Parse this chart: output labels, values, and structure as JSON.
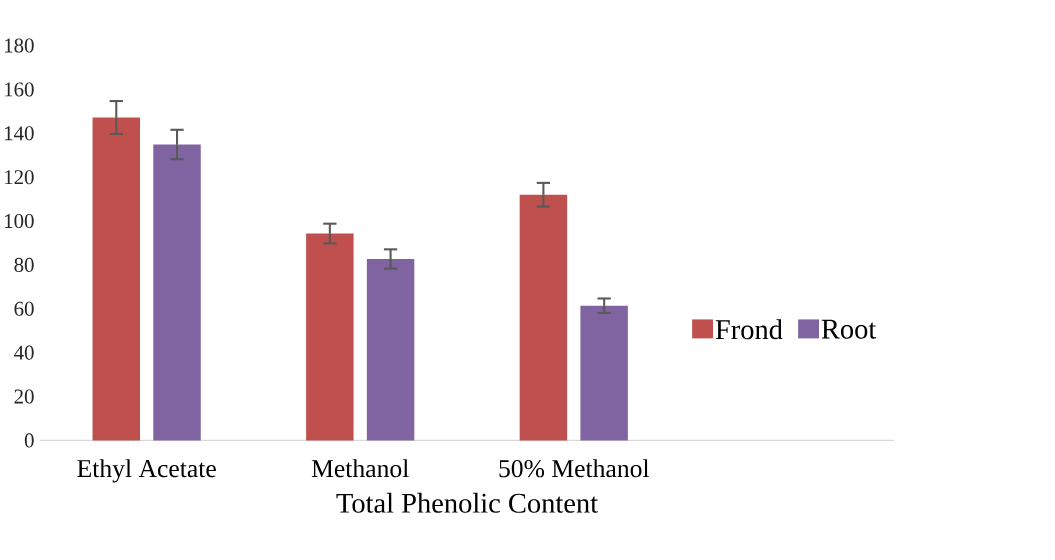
{
  "chart_data": {
    "type": "bar",
    "xlabel": "Total Phenolic Content",
    "categories": [
      "Ethyl Acetate",
      "Methanol",
      "50% Methanol"
    ],
    "series": [
      {
        "name": "Frond",
        "color": "#c0504d",
        "values": [
          147.2,
          94.3,
          112
        ],
        "errors": [
          7.5,
          4.5,
          5.4
        ]
      },
      {
        "name": "Root",
        "color": "#8064a2",
        "values": [
          134.9,
          82.7,
          61.4
        ],
        "errors": [
          6.7,
          4.4,
          3.3
        ]
      }
    ],
    "ylim": [
      0,
      180
    ],
    "yticks": [
      0,
      20,
      40,
      60,
      80,
      100,
      120,
      140,
      160,
      180
    ],
    "grid": false,
    "legend": "right"
  }
}
